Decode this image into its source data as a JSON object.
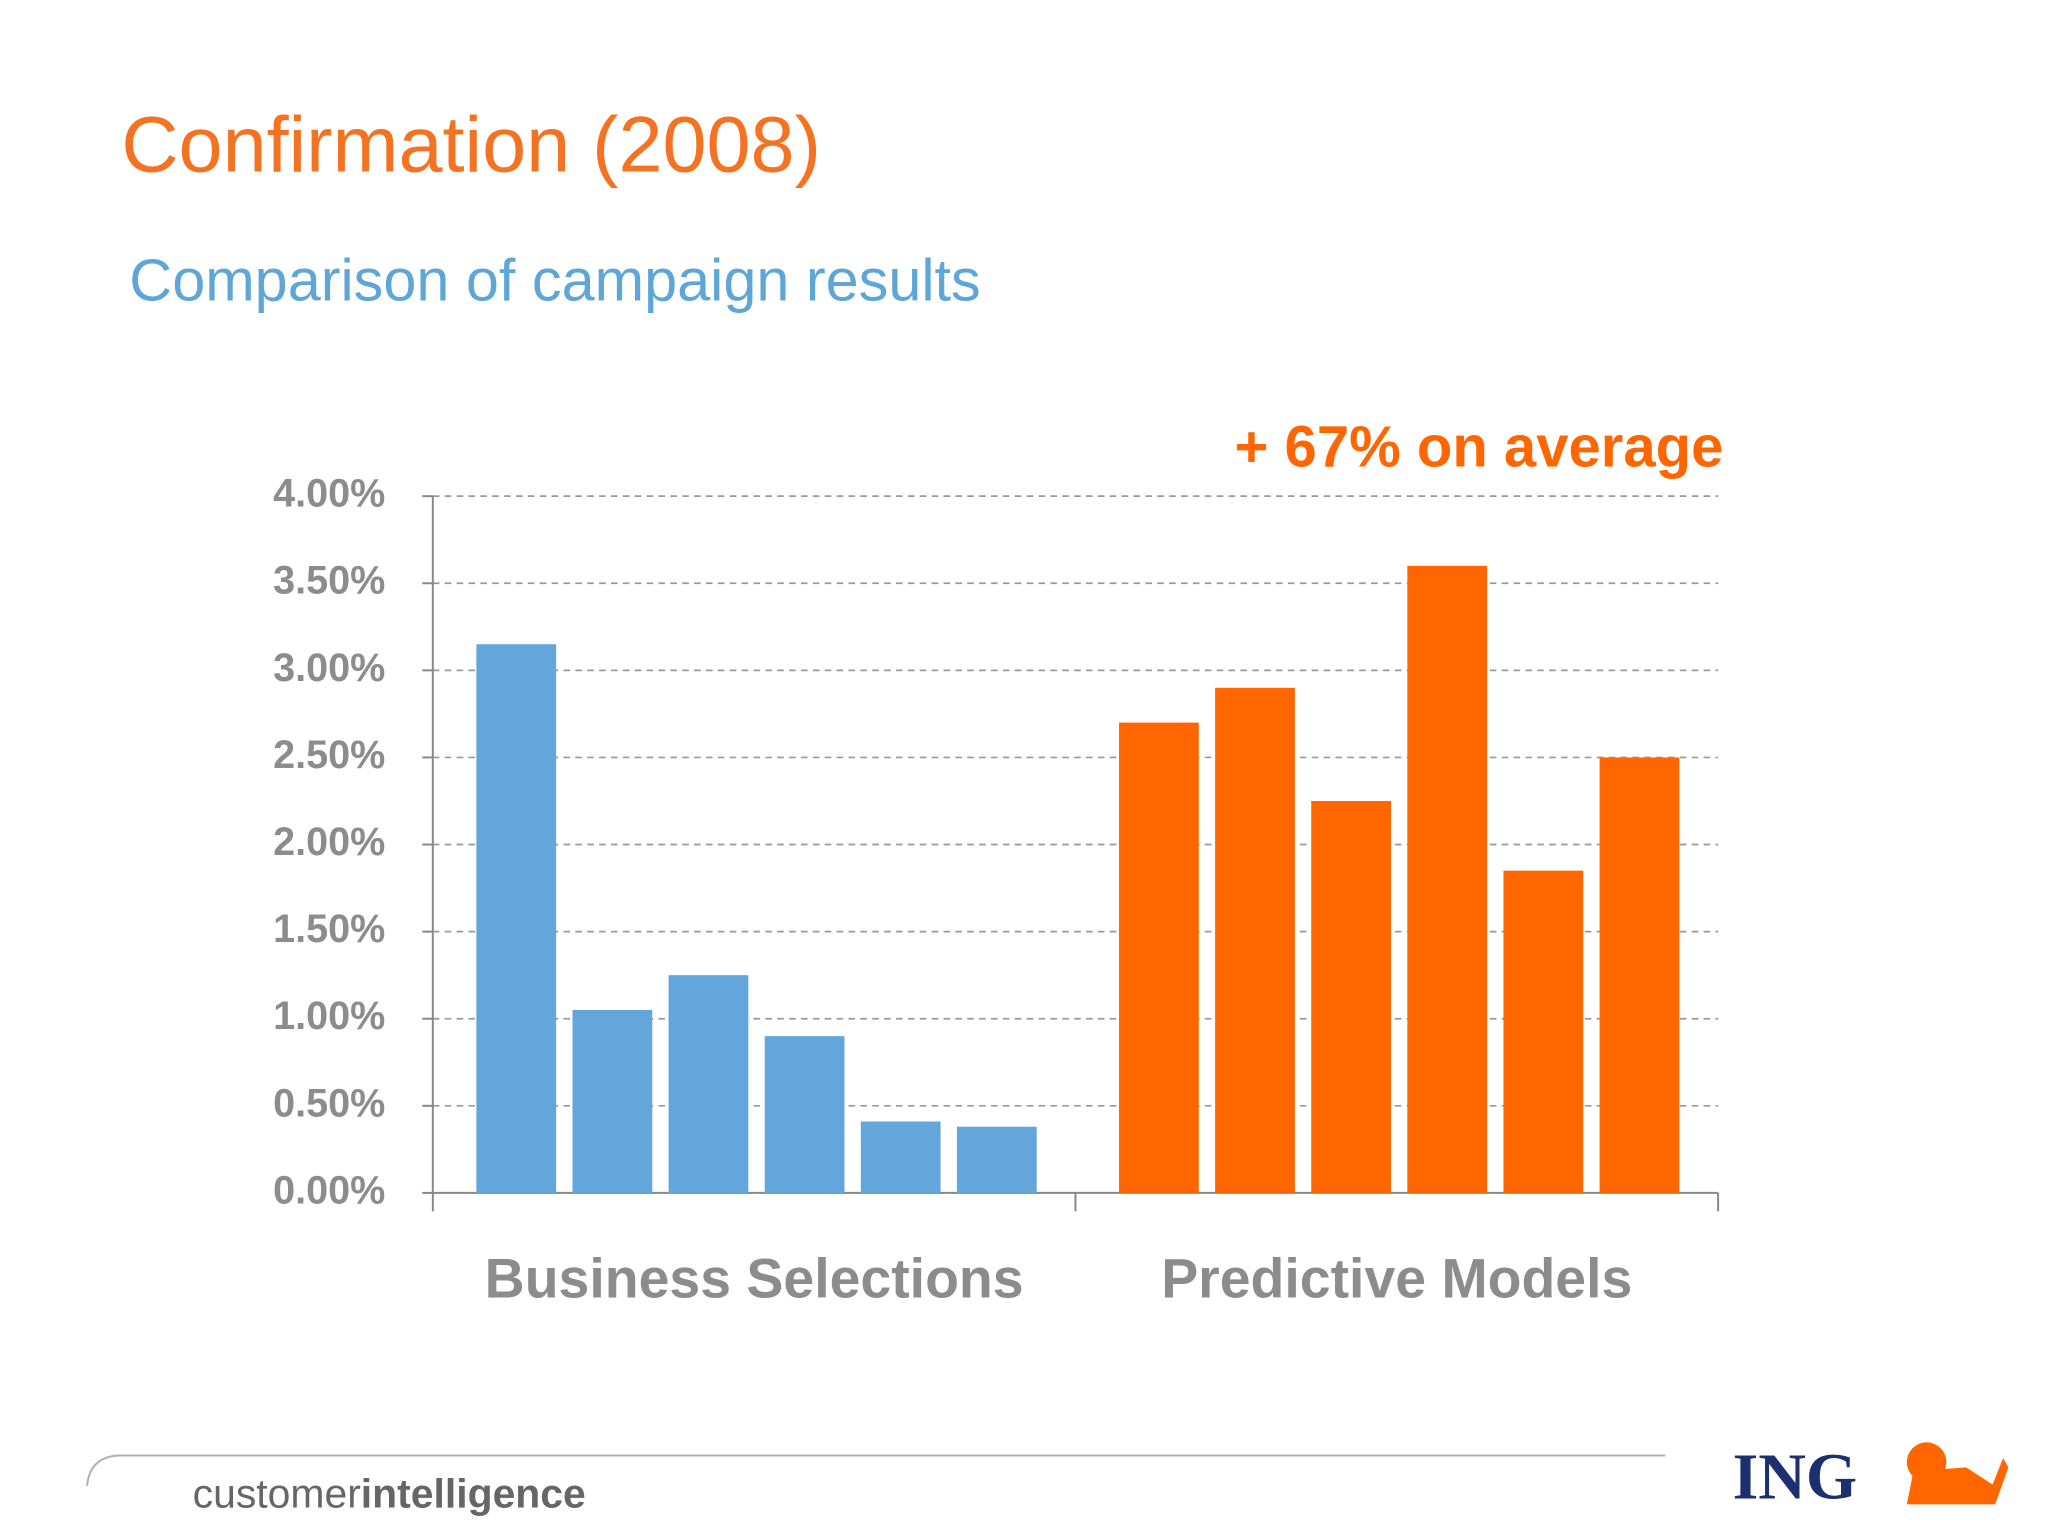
{
  "chart_data": {
    "type": "bar",
    "title": "Confirmation (2008)",
    "subtitle": "Comparison of campaign results",
    "annotation": "+ 67% on average",
    "series": [
      {
        "name": "Business Selections",
        "color": "#62a6db",
        "values": [
          3.15,
          1.05,
          1.25,
          0.9,
          0.41,
          0.38
        ]
      },
      {
        "name": "Predictive Models",
        "color": "#ff6600",
        "values": [
          2.7,
          2.9,
          2.25,
          3.6,
          1.85,
          2.5
        ]
      }
    ],
    "ylim": [
      0,
      4
    ],
    "yticks": [
      {
        "value": 0,
        "label": "0.00%"
      },
      {
        "value": 0.5,
        "label": "0.50%"
      },
      {
        "value": 1,
        "label": "1.00%"
      },
      {
        "value": 1.5,
        "label": "1.50%"
      },
      {
        "value": 2,
        "label": "2.00%"
      },
      {
        "value": 2.5,
        "label": "2.50%"
      },
      {
        "value": 3,
        "label": "3.00%"
      },
      {
        "value": 3.5,
        "label": "3.50%"
      },
      {
        "value": 4,
        "label": "4.00%"
      }
    ],
    "grid": true
  },
  "footer": {
    "brand_regular": "customer",
    "brand_bold": "intelligence",
    "logo": "ING"
  }
}
